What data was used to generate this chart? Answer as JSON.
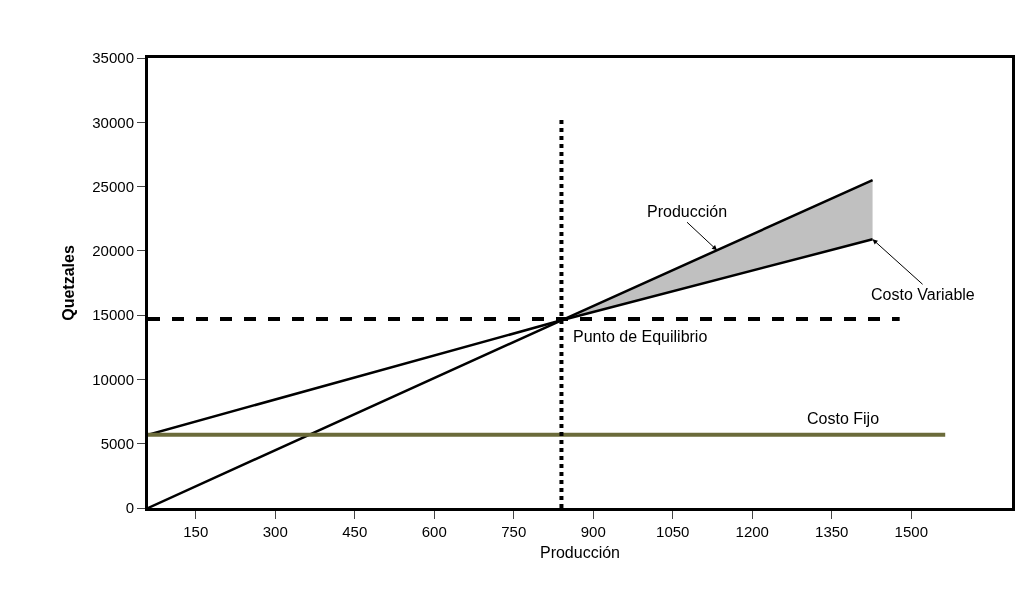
{
  "chart_data": {
    "type": "line",
    "xlabel": "Producción",
    "ylabel": "Quetzales",
    "xlim": [
      60,
      1690
    ],
    "xticks": [
      150,
      300,
      450,
      600,
      750,
      900,
      1050,
      1200,
      1350,
      1500
    ],
    "ylim": [
      0,
      35000
    ],
    "yticks": [
      0,
      5000,
      10000,
      15000,
      20000,
      25000,
      30000,
      35000
    ],
    "series": [
      {
        "name": "Producción",
        "color": "#000000",
        "x": [
          60,
          840,
          1427
        ],
        "values": [
          0,
          14600,
          25500
        ],
        "lower": [
          null,
          14600,
          20900
        ],
        "upper": [
          null,
          14600,
          25500
        ]
      },
      {
        "name": "Costo Variable",
        "color": "#000000",
        "x": [
          60,
          840,
          1427
        ],
        "values": [
          5700,
          14600,
          20900
        ]
      },
      {
        "name": "Costo Fijo",
        "color": "#6b6b3a",
        "x": [
          60,
          1564
        ],
        "values": [
          5700,
          5700
        ]
      }
    ],
    "ref_lines": [
      {
        "axis": "x",
        "value": 840,
        "line_style": "dotted",
        "color": "#000000"
      },
      {
        "axis": "y",
        "value": 14700,
        "line_style": "dashed",
        "color": "#000000"
      }
    ],
    "annotations": [
      {
        "text": "Punto de Equilibrio",
        "x": 840,
        "y": 14600
      }
    ],
    "grid": false,
    "legend": false,
    "marker": "none",
    "line_style": "solid"
  }
}
